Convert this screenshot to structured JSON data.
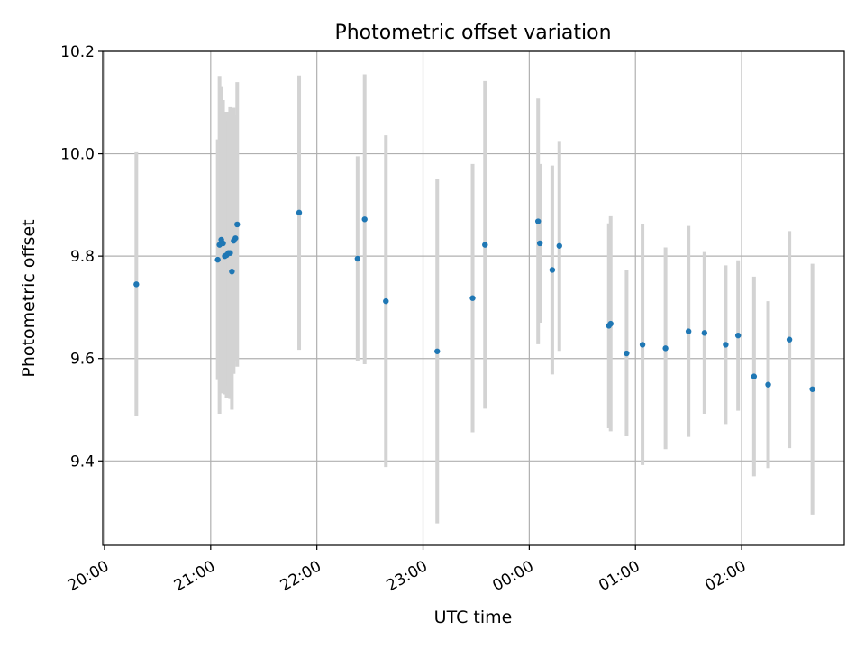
{
  "chart_data": {
    "type": "scatter",
    "title": "Photometric offset variation",
    "xlabel": "UTC time",
    "ylabel": "Photometric offset",
    "x_unit": "UTC time (HH:MM)",
    "xlim": [
      "19:59",
      "02:58"
    ],
    "ylim": [
      9.235,
      10.2
    ],
    "grid": true,
    "colors": {
      "marker": "#1f77b4",
      "errorbar": "#d3d3d3",
      "grid": "#b0b0b0"
    },
    "x_ticks": [
      {
        "label": "20:00",
        "value": "20:00"
      },
      {
        "label": "21:00",
        "value": "21:00"
      },
      {
        "label": "22:00",
        "value": "22:00"
      },
      {
        "label": "23:00",
        "value": "23:00"
      },
      {
        "label": "00:00",
        "value": "00:00"
      },
      {
        "label": "01:00",
        "value": "01:00"
      },
      {
        "label": "02:00",
        "value": "02:00"
      }
    ],
    "y_ticks": [
      {
        "label": "9.4",
        "value": 9.4
      },
      {
        "label": "9.6",
        "value": 9.6
      },
      {
        "label": "9.8",
        "value": 9.8
      },
      {
        "label": "10.0",
        "value": 10.0
      },
      {
        "label": "10.2",
        "value": 10.2
      }
    ],
    "series": [
      {
        "points": [
          {
            "x": "20:18",
            "y": 9.745,
            "yerr": 0.258
          },
          {
            "x": "21:04",
            "y": 9.793,
            "yerr": 0.235
          },
          {
            "x": "21:05",
            "y": 9.822,
            "yerr": 0.33
          },
          {
            "x": "21:06",
            "y": 9.832,
            "yerr": 0.3
          },
          {
            "x": "21:07",
            "y": 9.825,
            "yerr": 0.28
          },
          {
            "x": "21:08",
            "y": 9.8,
            "yerr": 0.27
          },
          {
            "x": "21:09",
            "y": 9.802,
            "yerr": 0.28
          },
          {
            "x": "21:10",
            "y": 9.806,
            "yerr": 0.26
          },
          {
            "x": "21:11",
            "y": 9.806,
            "yerr": 0.285
          },
          {
            "x": "21:12",
            "y": 9.77,
            "yerr": 0.27
          },
          {
            "x": "21:13",
            "y": 9.83,
            "yerr": 0.26
          },
          {
            "x": "21:14",
            "y": 9.835,
            "yerr": 0.24
          },
          {
            "x": "21:15",
            "y": 9.862,
            "yerr": 0.278
          },
          {
            "x": "21:50",
            "y": 9.885,
            "yerr": 0.268
          },
          {
            "x": "22:23",
            "y": 9.795,
            "yerr": 0.2
          },
          {
            "x": "22:27",
            "y": 9.872,
            "yerr": 0.283
          },
          {
            "x": "22:39",
            "y": 9.712,
            "yerr": 0.324
          },
          {
            "x": "23:08",
            "y": 9.614,
            "yerr": 0.336
          },
          {
            "x": "23:28",
            "y": 9.718,
            "yerr": 0.262
          },
          {
            "x": "23:35",
            "y": 9.822,
            "yerr": 0.32
          },
          {
            "x": "00:05",
            "y": 9.868,
            "yerr": 0.24
          },
          {
            "x": "00:06",
            "y": 9.825,
            "yerr": 0.155
          },
          {
            "x": "00:13",
            "y": 9.773,
            "yerr": 0.204
          },
          {
            "x": "00:17",
            "y": 9.82,
            "yerr": 0.205
          },
          {
            "x": "00:45",
            "y": 9.664,
            "yerr": 0.2
          },
          {
            "x": "00:46",
            "y": 9.668,
            "yerr": 0.21
          },
          {
            "x": "00:55",
            "y": 9.61,
            "yerr": 0.162
          },
          {
            "x": "01:04",
            "y": 9.627,
            "yerr": 0.235
          },
          {
            "x": "01:17",
            "y": 9.62,
            "yerr": 0.197
          },
          {
            "x": "01:30",
            "y": 9.653,
            "yerr": 0.206
          },
          {
            "x": "01:39",
            "y": 9.65,
            "yerr": 0.158
          },
          {
            "x": "01:51",
            "y": 9.627,
            "yerr": 0.155
          },
          {
            "x": "01:58",
            "y": 9.645,
            "yerr": 0.147
          },
          {
            "x": "02:07",
            "y": 9.565,
            "yerr": 0.195
          },
          {
            "x": "02:15",
            "y": 9.549,
            "yerr": 0.163
          },
          {
            "x": "02:27",
            "y": 9.637,
            "yerr": 0.212
          },
          {
            "x": "02:40",
            "y": 9.54,
            "yerr": 0.245
          }
        ]
      }
    ]
  }
}
